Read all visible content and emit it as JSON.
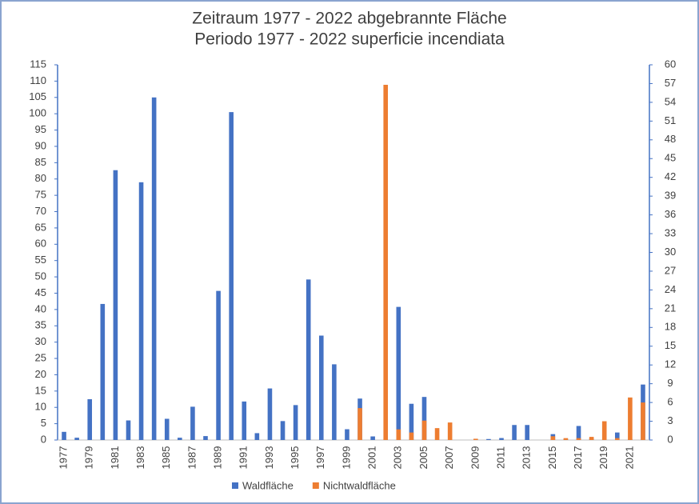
{
  "chart_data": {
    "type": "bar",
    "title": "Zeitraum  1977 - 2022 abgebrannte Fläche",
    "subtitle": "Periodo 1977 - 2022 superficie incendiata",
    "categories": [
      "1977",
      null,
      "1979",
      null,
      "1981",
      null,
      "1983",
      null,
      "1985",
      null,
      "1987",
      null,
      "1989",
      null,
      "1991",
      null,
      "1993",
      null,
      "1995",
      null,
      "1997",
      null,
      "1999",
      null,
      "2001",
      null,
      "2003",
      null,
      "2005",
      null,
      "2007",
      null,
      "2009",
      null,
      "2011",
      null,
      "2013",
      null,
      "2015",
      null,
      "2017",
      null,
      "2019",
      null,
      "2021",
      null
    ],
    "series": [
      {
        "name": "Waldfläche",
        "color": "#4472c4",
        "values": [
          2.5,
          0.7,
          12.5,
          41.7,
          82.7,
          6,
          79,
          105,
          6.5,
          0.7,
          10.2,
          1.2,
          45.7,
          100.5,
          11.8,
          2.1,
          15.8,
          5.8,
          10.7,
          49.2,
          32,
          23.2,
          3.3,
          12.7,
          1.1,
          0,
          40.8,
          11.1,
          13.2,
          0,
          0,
          0,
          0.2,
          0.3,
          0.6,
          4.6,
          4.6,
          0,
          1.8,
          0.3,
          4.3,
          0.5,
          0,
          2.3,
          0.3,
          17
        ]
      },
      {
        "name": "Nichtwaldfläche",
        "color": "#ed7d31",
        "axis": "y2",
        "values": [
          0,
          0,
          0,
          0,
          0,
          0,
          0,
          0,
          0,
          0,
          0,
          0,
          0,
          0,
          0,
          0,
          0,
          0,
          0,
          0,
          0,
          0,
          0,
          5.1,
          0,
          56.8,
          1.7,
          1.2,
          3.1,
          1.9,
          2.8,
          0,
          0.2,
          0,
          0,
          0,
          0,
          0,
          0.6,
          0.3,
          0.3,
          0.5,
          3,
          0.3,
          6.8,
          6
        ]
      }
    ],
    "ylim": [
      0,
      115
    ],
    "yticks": [
      0,
      5,
      10,
      15,
      20,
      25,
      30,
      35,
      40,
      45,
      50,
      55,
      60,
      65,
      70,
      75,
      80,
      85,
      90,
      95,
      100,
      105,
      110,
      115
    ],
    "y2lim": [
      0,
      60
    ],
    "y2ticks": [
      0,
      3,
      6,
      9,
      12,
      15,
      18,
      21,
      24,
      27,
      30,
      33,
      36,
      39,
      42,
      45,
      48,
      51,
      54,
      57,
      60
    ],
    "grid": false,
    "legend": "bottom"
  }
}
